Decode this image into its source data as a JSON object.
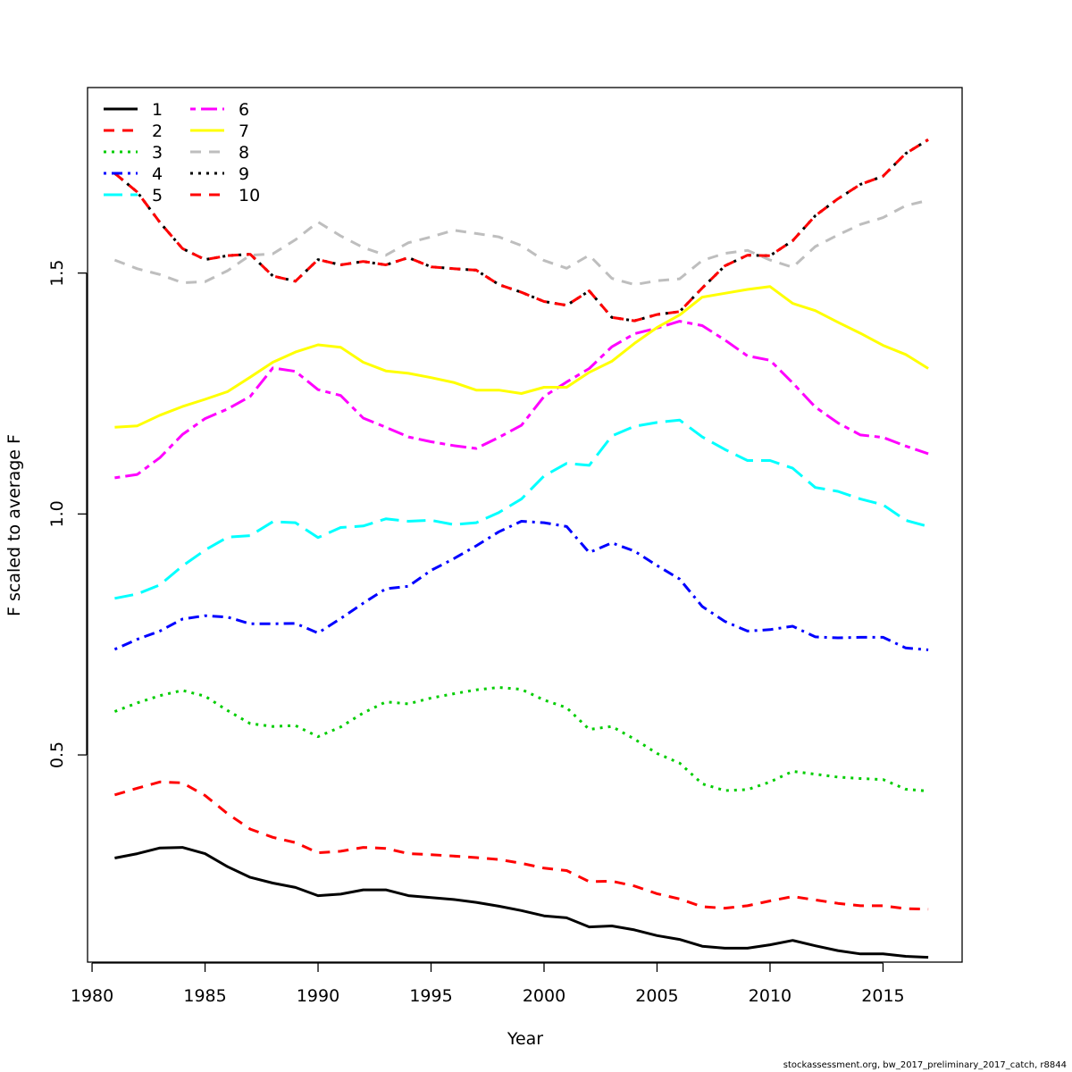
{
  "chart_data": {
    "type": "line",
    "xlabel": "Year",
    "ylabel": "F scaled to average F",
    "xlim": [
      1979.8,
      2018.5
    ],
    "ylim": [
      0.07,
      1.885
    ],
    "x_ticks": [
      1980,
      1985,
      1990,
      1995,
      2000,
      2005,
      2010,
      2015
    ],
    "y_ticks": [
      0.5,
      1.0,
      1.5
    ],
    "y_tick_labels": [
      "0.5",
      "1.0",
      "1.5"
    ],
    "legend_position": "top-left",
    "x": [
      1981,
      1982,
      1983,
      1984,
      1985,
      1986,
      1987,
      1988,
      1989,
      1990,
      1991,
      1992,
      1993,
      1994,
      1995,
      1996,
      1997,
      1998,
      1999,
      2000,
      2001,
      2002,
      2003,
      2004,
      2005,
      2006,
      2007,
      2008,
      2009,
      2010,
      2011,
      2012,
      2013,
      2014,
      2015,
      2016,
      2017
    ],
    "series": [
      {
        "name": "1",
        "color": "#000000",
        "dash": "solid",
        "values": [
          0.286,
          0.295,
          0.307,
          0.308,
          0.295,
          0.268,
          0.246,
          0.234,
          0.225,
          0.208,
          0.211,
          0.22,
          0.22,
          0.208,
          0.204,
          0.2,
          0.194,
          0.186,
          0.177,
          0.166,
          0.162,
          0.143,
          0.145,
          0.137,
          0.125,
          0.117,
          0.103,
          0.099,
          0.099,
          0.106,
          0.115,
          0.104,
          0.094,
          0.087,
          0.087,
          0.082,
          0.08
        ]
      },
      {
        "name": "2",
        "color": "#ff0000",
        "dash": "dashed",
        "values": [
          0.417,
          0.431,
          0.444,
          0.442,
          0.416,
          0.378,
          0.346,
          0.329,
          0.318,
          0.297,
          0.3,
          0.308,
          0.306,
          0.295,
          0.293,
          0.29,
          0.287,
          0.283,
          0.275,
          0.265,
          0.26,
          0.237,
          0.238,
          0.228,
          0.212,
          0.201,
          0.185,
          0.182,
          0.187,
          0.197,
          0.206,
          0.199,
          0.192,
          0.187,
          0.187,
          0.181,
          0.18
        ]
      },
      {
        "name": "3",
        "color": "#00cd00",
        "dash": "dotted",
        "values": [
          0.59,
          0.608,
          0.623,
          0.634,
          0.622,
          0.592,
          0.565,
          0.559,
          0.561,
          0.538,
          0.558,
          0.587,
          0.61,
          0.606,
          0.618,
          0.627,
          0.635,
          0.64,
          0.636,
          0.614,
          0.598,
          0.553,
          0.559,
          0.533,
          0.503,
          0.483,
          0.44,
          0.426,
          0.428,
          0.444,
          0.466,
          0.46,
          0.454,
          0.451,
          0.449,
          0.429,
          0.425
        ]
      },
      {
        "name": "4",
        "color": "#0000ff",
        "dash": "dotdash",
        "values": [
          0.719,
          0.74,
          0.757,
          0.782,
          0.789,
          0.786,
          0.772,
          0.772,
          0.773,
          0.753,
          0.783,
          0.815,
          0.845,
          0.85,
          0.883,
          0.907,
          0.934,
          0.963,
          0.985,
          0.982,
          0.974,
          0.92,
          0.94,
          0.923,
          0.893,
          0.865,
          0.808,
          0.777,
          0.757,
          0.76,
          0.767,
          0.745,
          0.743,
          0.744,
          0.744,
          0.722,
          0.718
        ]
      },
      {
        "name": "5",
        "color": "#00ffff",
        "dash": "longdash",
        "values": [
          0.825,
          0.834,
          0.853,
          0.892,
          0.925,
          0.952,
          0.955,
          0.984,
          0.982,
          0.951,
          0.972,
          0.975,
          0.99,
          0.985,
          0.987,
          0.978,
          0.982,
          1.003,
          1.031,
          1.079,
          1.105,
          1.101,
          1.162,
          1.182,
          1.19,
          1.195,
          1.16,
          1.134,
          1.111,
          1.111,
          1.095,
          1.055,
          1.047,
          1.031,
          1.019,
          0.987,
          0.974
        ]
      },
      {
        "name": "6",
        "color": "#ff00ff",
        "dash": "twodash",
        "values": [
          1.075,
          1.082,
          1.117,
          1.165,
          1.198,
          1.218,
          1.244,
          1.303,
          1.296,
          1.258,
          1.246,
          1.199,
          1.18,
          1.16,
          1.15,
          1.142,
          1.136,
          1.159,
          1.184,
          1.244,
          1.274,
          1.302,
          1.347,
          1.374,
          1.386,
          1.4,
          1.391,
          1.361,
          1.328,
          1.319,
          1.272,
          1.222,
          1.189,
          1.164,
          1.159,
          1.141,
          1.125
        ]
      },
      {
        "name": "7",
        "color": "#ffff00",
        "dash": "solid",
        "values": [
          1.18,
          1.183,
          1.205,
          1.223,
          1.238,
          1.254,
          1.284,
          1.315,
          1.336,
          1.351,
          1.346,
          1.315,
          1.297,
          1.292,
          1.283,
          1.273,
          1.257,
          1.257,
          1.25,
          1.263,
          1.263,
          1.294,
          1.317,
          1.354,
          1.387,
          1.413,
          1.45,
          1.458,
          1.466,
          1.472,
          1.437,
          1.422,
          1.398,
          1.375,
          1.35,
          1.331,
          1.302
        ]
      },
      {
        "name": "8",
        "color": "#bebebe",
        "dash": "dashed",
        "values": [
          1.527,
          1.509,
          1.497,
          1.48,
          1.482,
          1.505,
          1.537,
          1.54,
          1.569,
          1.606,
          1.577,
          1.553,
          1.537,
          1.563,
          1.575,
          1.589,
          1.582,
          1.575,
          1.557,
          1.526,
          1.51,
          1.537,
          1.489,
          1.476,
          1.484,
          1.488,
          1.526,
          1.541,
          1.547,
          1.527,
          1.512,
          1.555,
          1.579,
          1.601,
          1.615,
          1.64,
          1.651
        ]
      },
      {
        "name": "9",
        "color": "#000000",
        "dash": "dotted",
        "values": [
          1.707,
          1.668,
          1.605,
          1.551,
          1.528,
          1.536,
          1.539,
          1.494,
          1.483,
          1.528,
          1.517,
          1.524,
          1.517,
          1.532,
          1.513,
          1.509,
          1.506,
          1.476,
          1.46,
          1.441,
          1.433,
          1.463,
          1.408,
          1.401,
          1.414,
          1.42,
          1.469,
          1.515,
          1.537,
          1.536,
          1.567,
          1.619,
          1.654,
          1.684,
          1.701,
          1.748,
          1.777
        ]
      },
      {
        "name": "10",
        "color": "#ff0000",
        "dash": "dashed2",
        "values": [
          1.707,
          1.668,
          1.605,
          1.551,
          1.528,
          1.536,
          1.539,
          1.494,
          1.483,
          1.528,
          1.517,
          1.524,
          1.517,
          1.532,
          1.513,
          1.509,
          1.506,
          1.476,
          1.46,
          1.441,
          1.433,
          1.463,
          1.408,
          1.401,
          1.414,
          1.42,
          1.469,
          1.515,
          1.537,
          1.536,
          1.567,
          1.619,
          1.654,
          1.684,
          1.701,
          1.748,
          1.777
        ]
      }
    ]
  },
  "footnote": "stockassessment.org, bw_2017_preliminary_2017_catch, r8844"
}
